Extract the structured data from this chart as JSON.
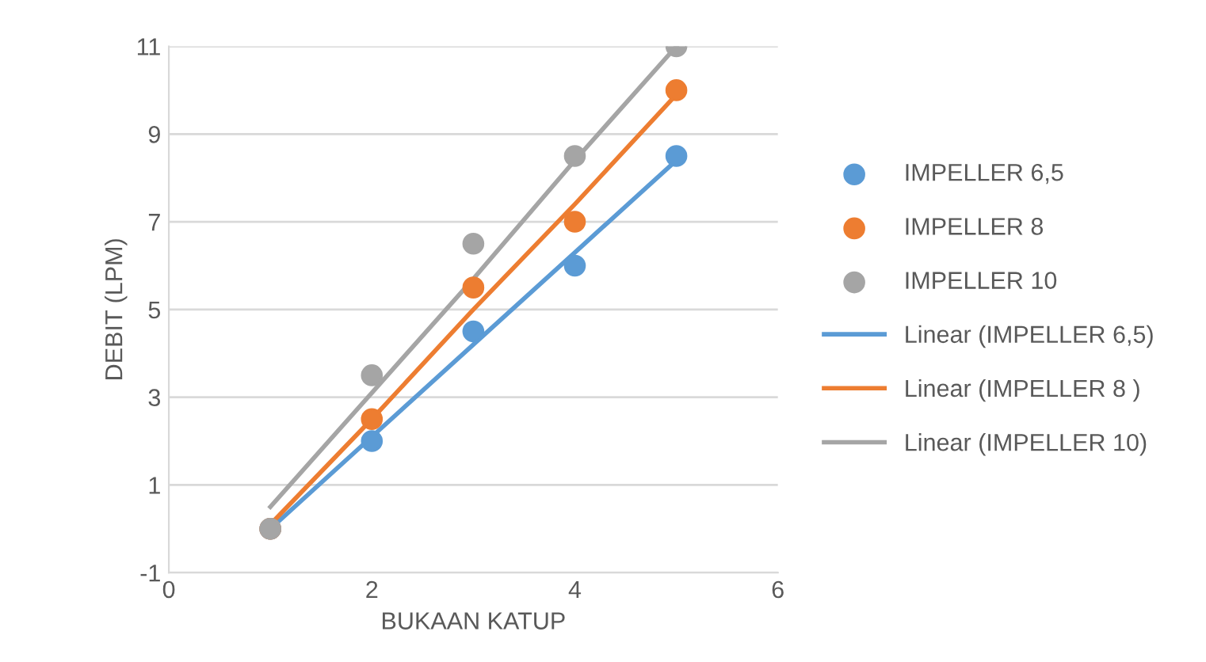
{
  "chart_data": {
    "type": "scatter",
    "xlabel": "BUKAAN KATUP",
    "ylabel": "DEBIT (LPM)",
    "x": [
      1,
      2,
      3,
      4,
      5
    ],
    "series": [
      {
        "name": "IMPELLER 6,5",
        "marker": "circle",
        "color": "#5b9bd5",
        "values": [
          0,
          2,
          4.5,
          6,
          8.5
        ]
      },
      {
        "name": "IMPELLER 8",
        "marker": "circle",
        "color": "#ed7d31",
        "values": [
          0,
          2.5,
          5.5,
          7,
          10
        ]
      },
      {
        "name": "IMPELLER 10",
        "marker": "circle",
        "color": "#a5a5a5",
        "values": [
          0,
          3.5,
          6.5,
          8.5,
          11
        ]
      },
      {
        "name": "Linear (IMPELLER 6,5)",
        "type": "line",
        "marker": "none",
        "color": "#5b9bd5",
        "values": [
          0,
          2.1,
          4.2,
          6.3,
          8.4
        ]
      },
      {
        "name": "Linear (IMPELLER 8 )",
        "type": "line",
        "marker": "none",
        "color": "#ed7d31",
        "values": [
          0.1,
          2.5,
          5,
          7.4,
          9.9
        ]
      },
      {
        "name": "Linear (IMPELLER 10)",
        "type": "line",
        "marker": "none",
        "color": "#a5a5a5",
        "values": [
          0.5,
          3.1,
          5.7,
          8.4,
          11
        ]
      }
    ],
    "xlim": [
      0,
      6
    ],
    "xticks": [
      0,
      2,
      4,
      6
    ],
    "ylim": [
      -1,
      11
    ],
    "yticks": [
      -1,
      1,
      3,
      5,
      7,
      9,
      11
    ],
    "grid": "y",
    "legend": "right",
    "line_style": "solid"
  }
}
